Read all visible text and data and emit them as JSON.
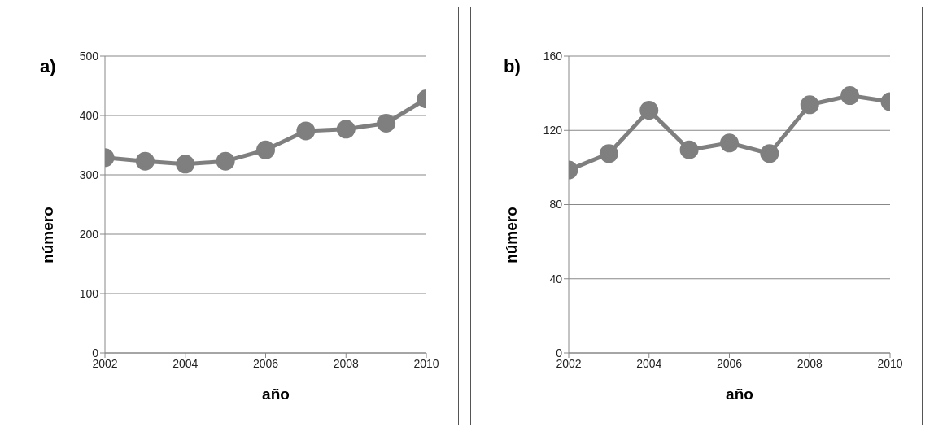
{
  "chart_data": [
    {
      "type": "line",
      "title": "a)",
      "xlabel": "año",
      "ylabel": "número",
      "x": [
        2002,
        2003,
        2004,
        2005,
        2006,
        2007,
        2008,
        2009,
        2010
      ],
      "xlim": [
        2002,
        2010
      ],
      "xticks": [
        2002,
        2004,
        2006,
        2008,
        2010
      ],
      "ylim": [
        0,
        500
      ],
      "yticks": [
        0,
        100,
        200,
        300,
        400,
        500
      ],
      "grid": "y",
      "marker": "circle",
      "series": [
        {
          "color": "#7f7f7f",
          "values": [
            329,
            323,
            318,
            323,
            342,
            374,
            377,
            387,
            428
          ]
        }
      ]
    },
    {
      "type": "line",
      "title": "b)",
      "xlabel": "año",
      "ylabel": "número",
      "x": [
        2002,
        2003,
        2004,
        2005,
        2006,
        2007,
        2008,
        2009,
        2010
      ],
      "xlim": [
        2002,
        2010
      ],
      "xticks": [
        2002,
        2004,
        2006,
        2008,
        2010
      ],
      "ylim": [
        0,
        160
      ],
      "yticks": [
        0,
        40,
        80,
        120,
        160
      ],
      "grid": "y",
      "marker": "circle",
      "series": [
        {
          "color": "#7f7f7f",
          "values": [
            98.6,
            107.5,
            130.8,
            109.5,
            113.2,
            107.5,
            133.8,
            138.7,
            135.4
          ]
        }
      ]
    }
  ]
}
